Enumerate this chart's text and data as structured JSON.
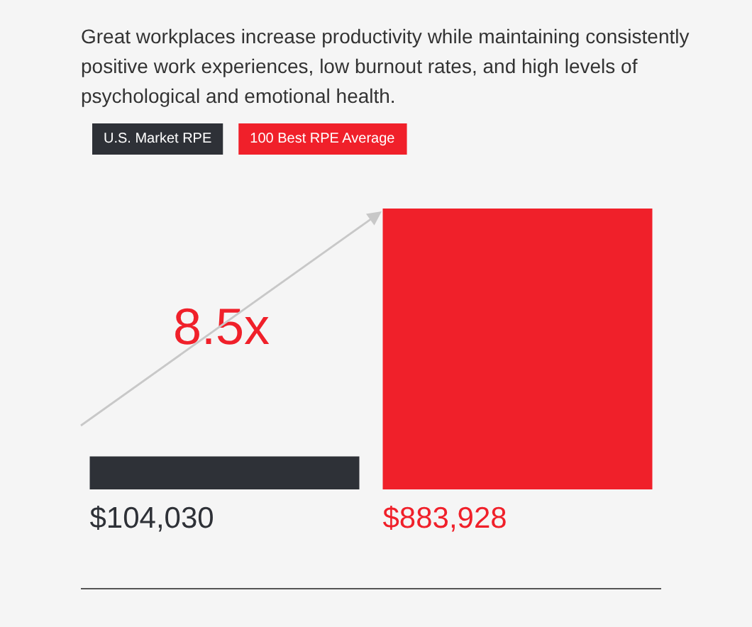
{
  "chart_data": {
    "type": "bar",
    "title": "Great workplaces increase productivity while maintaining consistently positive work experiences, low burnout rates, and high levels of psychological and emotional health.",
    "categories": [
      null,
      null
    ],
    "stacked": true,
    "relative": false,
    "legend": "top left",
    "annotations": [
      "8.5x"
    ],
    "series": [
      {
        "name": "U.S. Market RPE",
        "color": "#2e3137",
        "values": [
          104030,
          null
        ],
        "value_labels": [
          "$104,030",
          null
        ]
      },
      {
        "name": "100 Best RPE Average",
        "color": "#f0202a",
        "values": [
          null,
          883928
        ],
        "value_labels": [
          null,
          "$883,928"
        ]
      }
    ]
  }
}
